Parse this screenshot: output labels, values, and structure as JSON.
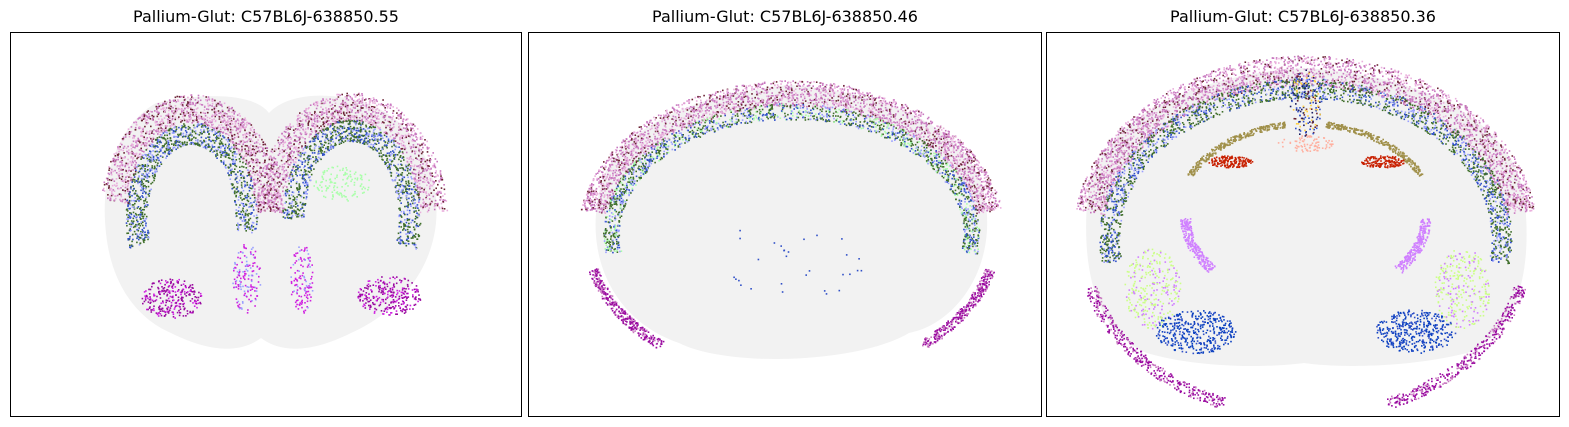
{
  "chart_data": [
    {
      "type": "scatter",
      "title": "Pallium-Glut: C57BL6J-638850.55",
      "xlabel": "",
      "ylabel": "",
      "grid": false,
      "series_colors": [
        "#f2f2f2",
        "#6b2335",
        "#c979c0",
        "#eab0dd",
        "#3f6e2a",
        "#3050c8",
        "#9aa0ff",
        "#d020e0",
        "#9a0aa0",
        "#aaffaa"
      ]
    },
    {
      "type": "scatter",
      "title": "Pallium-Glut: C57BL6J-638850.46",
      "xlabel": "",
      "ylabel": "",
      "grid": false,
      "series_colors": [
        "#f2f2f2",
        "#6b2335",
        "#c979c0",
        "#eab0dd",
        "#3f6e2a",
        "#3050c8",
        "#9aa0ff",
        "#9a0aa0",
        "#aaffaa"
      ]
    },
    {
      "type": "scatter",
      "title": "Pallium-Glut: C57BL6J-638850.36",
      "xlabel": "",
      "ylabel": "",
      "grid": false,
      "series_colors": [
        "#f2f2f2",
        "#6b2335",
        "#c979c0",
        "#eab0dd",
        "#3f6e2a",
        "#3050c8",
        "#9aa0ff",
        "#9a0aa0",
        "#ccff88",
        "#0a40c0",
        "#d080ff",
        "#c82000",
        "#a0904a",
        "#ffb0a0",
        "#ffd040",
        "#1a1a60"
      ]
    }
  ]
}
